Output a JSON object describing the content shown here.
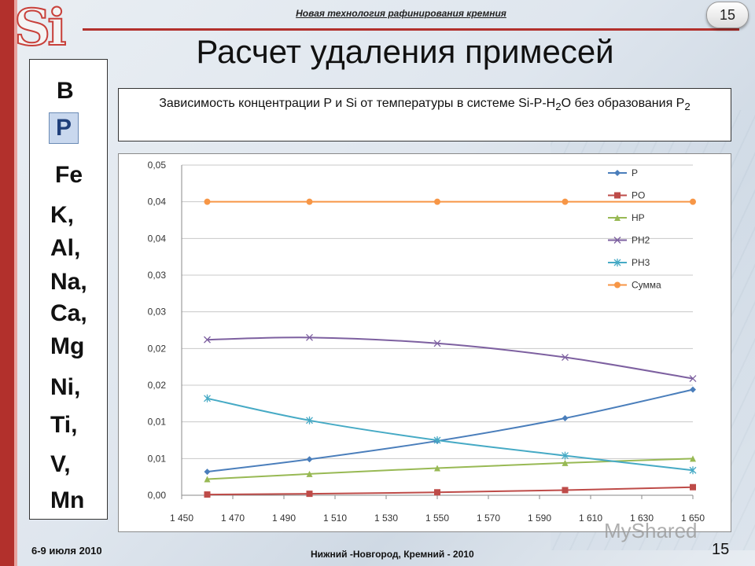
{
  "header": {
    "logo_text": "Si",
    "subtitle": "Новая технология рафинирования кремния",
    "slide_badge": "15",
    "title": "Расчет удаления примесей"
  },
  "elements_list": [
    "B",
    "P",
    "Fe",
    "K,",
    "Al,",
    "Na,",
    "Ca,",
    "Mg",
    "Ni,",
    "Ti,",
    "V,",
    "Mn"
  ],
  "description": {
    "text_before": "Зависимость концентрации P и Si от температуры в системе Si-P-H",
    "sub1": "2",
    "text_middle": "O без образования P",
    "sub2": "2"
  },
  "chart_data": {
    "type": "line",
    "x": [
      1460,
      1500,
      1550,
      1600,
      1650
    ],
    "xlim": [
      1450,
      1650
    ],
    "x_ticks": [
      "1 450",
      "1 470",
      "1 490",
      "1 510",
      "1 530",
      "1 550",
      "1 570",
      "1 590",
      "1 610",
      "1 630",
      "1 650"
    ],
    "ylim": [
      0,
      0.045
    ],
    "y_ticks": [
      "0,00",
      "0,01",
      "0,01",
      "0,02",
      "0,02",
      "0,03",
      "0,03",
      "0,04",
      "0,04",
      "0,05"
    ],
    "grid": true,
    "legend_position": "top-right",
    "series": [
      {
        "name": "P",
        "color": "#4a7ebb",
        "marker": "diamond",
        "values": [
          0.0032,
          0.0049,
          0.0074,
          0.0105,
          0.0144
        ]
      },
      {
        "name": "PO",
        "color": "#be4b48",
        "marker": "square",
        "values": [
          0.0001,
          0.0002,
          0.0004,
          0.0007,
          0.0011
        ]
      },
      {
        "name": "HP",
        "color": "#98b954",
        "marker": "triangle",
        "values": [
          0.0022,
          0.0029,
          0.0037,
          0.0044,
          0.005
        ]
      },
      {
        "name": "PH2",
        "color": "#7d60a0",
        "marker": "x",
        "values": [
          0.0212,
          0.0215,
          0.0207,
          0.0188,
          0.0159
        ]
      },
      {
        "name": "PH3",
        "color": "#46aac5",
        "marker": "star",
        "values": [
          0.0132,
          0.0102,
          0.0075,
          0.0054,
          0.0034
        ]
      },
      {
        "name": "Сумма",
        "color": "#f79646",
        "marker": "circle",
        "values": [
          0.04,
          0.04,
          0.04,
          0.04,
          0.04
        ]
      }
    ]
  },
  "footer": {
    "date": "6-9 июля 2010",
    "center": "Нижний -Новгород, Кремний - 2010",
    "page": "15",
    "watermark": "MyShared"
  }
}
